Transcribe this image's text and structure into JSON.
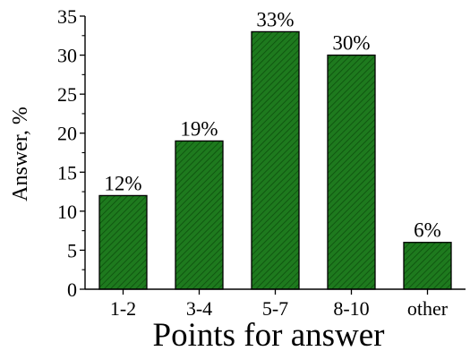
{
  "chart_data": {
    "type": "bar",
    "categories": [
      "1-2",
      "3-4",
      "5-7",
      "8-10",
      "other"
    ],
    "values": [
      12,
      19,
      33,
      30,
      6
    ],
    "data_labels": [
      "12%",
      "19%",
      "33%",
      "30%",
      "6%"
    ],
    "xlabel": "Points for answer",
    "ylabel": "Answer, %",
    "ylim": [
      0,
      35
    ],
    "yticks": [
      0,
      5,
      10,
      15,
      20,
      25,
      30,
      35
    ],
    "grid": false,
    "bar_color": "#1e7a1e",
    "bar_edge_color": "#000000",
    "hatch_color": "#0d4f0d"
  }
}
